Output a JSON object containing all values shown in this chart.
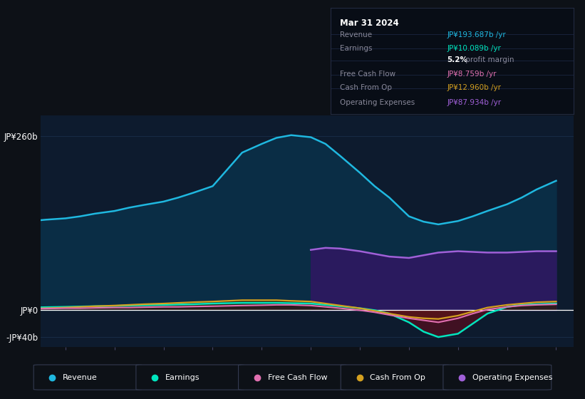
{
  "bg_color": "#0d1117",
  "plot_bg_color": "#0d1b2e",
  "grid_color": "#1a2f4a",
  "revenue_color": "#1fb8e0",
  "revenue_fill": "#0a2d45",
  "earnings_color": "#00e5be",
  "earnings_fill_pos": "#0a3530",
  "earnings_fill_neg": "#4a1020",
  "fcf_color": "#e070b0",
  "fcf_fill_neg": "#5a1040",
  "cashfromop_color": "#d4a020",
  "cashfromop_fill_neg": "#4a2800",
  "opex_color": "#a060d8",
  "opex_fill": "#2a1a5e",
  "years": [
    2013.0,
    2013.3,
    2013.6,
    2014.0,
    2014.3,
    2014.6,
    2015.0,
    2015.3,
    2015.6,
    2016.0,
    2016.3,
    2016.6,
    2017.0,
    2017.3,
    2017.6,
    2018.0,
    2018.3,
    2018.6,
    2019.0,
    2019.3,
    2019.6,
    2020.0,
    2020.3,
    2020.6,
    2021.0,
    2021.3,
    2021.6,
    2022.0,
    2022.3,
    2022.6,
    2023.0,
    2023.3,
    2023.6,
    2024.0
  ],
  "revenue": [
    132,
    133,
    135,
    137,
    140,
    144,
    148,
    153,
    157,
    162,
    168,
    175,
    185,
    210,
    235,
    248,
    257,
    261,
    258,
    248,
    230,
    205,
    185,
    168,
    140,
    132,
    128,
    133,
    140,
    148,
    158,
    168,
    180,
    193
  ],
  "earnings": [
    3.5,
    4,
    4.5,
    5,
    5.5,
    6,
    6.5,
    7,
    7.5,
    8,
    8.5,
    9,
    10,
    10.5,
    11,
    11,
    11,
    10.5,
    10,
    8,
    6,
    3,
    0,
    -5,
    -18,
    -32,
    -40,
    -35,
    -20,
    -5,
    5,
    8,
    9,
    10
  ],
  "fcf": [
    2,
    2,
    2.5,
    3,
    3,
    3.5,
    4,
    4,
    4.5,
    5,
    5,
    5.5,
    6,
    6.5,
    7,
    7.5,
    8,
    8,
    7,
    5,
    3,
    0,
    -3,
    -7,
    -12,
    -15,
    -18,
    -12,
    -5,
    1,
    5,
    7,
    8,
    8.759
  ],
  "cashfromop": [
    2,
    2.5,
    3,
    4,
    5,
    6,
    7,
    8,
    9,
    10,
    11,
    12,
    13,
    14,
    15,
    15,
    15,
    14,
    13,
    10,
    7,
    3,
    -1,
    -5,
    -10,
    -12,
    -13,
    -8,
    -2,
    4,
    8,
    10,
    12,
    12.96
  ],
  "opex_years": [
    2019.0,
    2019.3,
    2019.6,
    2020.0,
    2020.3,
    2020.6,
    2021.0,
    2021.3,
    2021.6,
    2022.0,
    2022.3,
    2022.6,
    2023.0,
    2023.3,
    2023.6,
    2024.0
  ],
  "opex": [
    90,
    93,
    92,
    88,
    84,
    80,
    78,
    82,
    86,
    88,
    87,
    86,
    86,
    87,
    88,
    88
  ],
  "ylim": [
    -55,
    290
  ],
  "xlim": [
    2013.5,
    2024.35
  ],
  "yticks": [
    260,
    0,
    -40
  ],
  "ytick_labels": [
    "JP¥260b",
    "JP¥0",
    "-JP¥40b"
  ],
  "xticks": [
    2014,
    2015,
    2016,
    2017,
    2018,
    2019,
    2020,
    2021,
    2022,
    2023,
    2024
  ],
  "legend_items": [
    {
      "label": "Revenue",
      "color": "#1fb8e0"
    },
    {
      "label": "Earnings",
      "color": "#00e5be"
    },
    {
      "label": "Free Cash Flow",
      "color": "#e070b0"
    },
    {
      "label": "Cash From Op",
      "color": "#d4a020"
    },
    {
      "label": "Operating Expenses",
      "color": "#a060d8"
    }
  ],
  "tooltip_title": "Mar 31 2024",
  "tooltip_rows": [
    {
      "label": "Revenue",
      "value": "JP¥193.687b /yr",
      "value_color": "#1fb8e0"
    },
    {
      "label": "Earnings",
      "value": "JP¥10.089b /yr",
      "value_color": "#00e5be"
    },
    {
      "label": "",
      "value": "5.2% profit margin",
      "value_color": "#cccccc",
      "bold_prefix": "5.2%"
    },
    {
      "label": "Free Cash Flow",
      "value": "JP¥8.759b /yr",
      "value_color": "#e070b0"
    },
    {
      "label": "Cash From Op",
      "value": "JP¥12.960b /yr",
      "value_color": "#d4a020"
    },
    {
      "label": "Operating Expenses",
      "value": "JP¥87.934b /yr",
      "value_color": "#a060d8"
    }
  ]
}
